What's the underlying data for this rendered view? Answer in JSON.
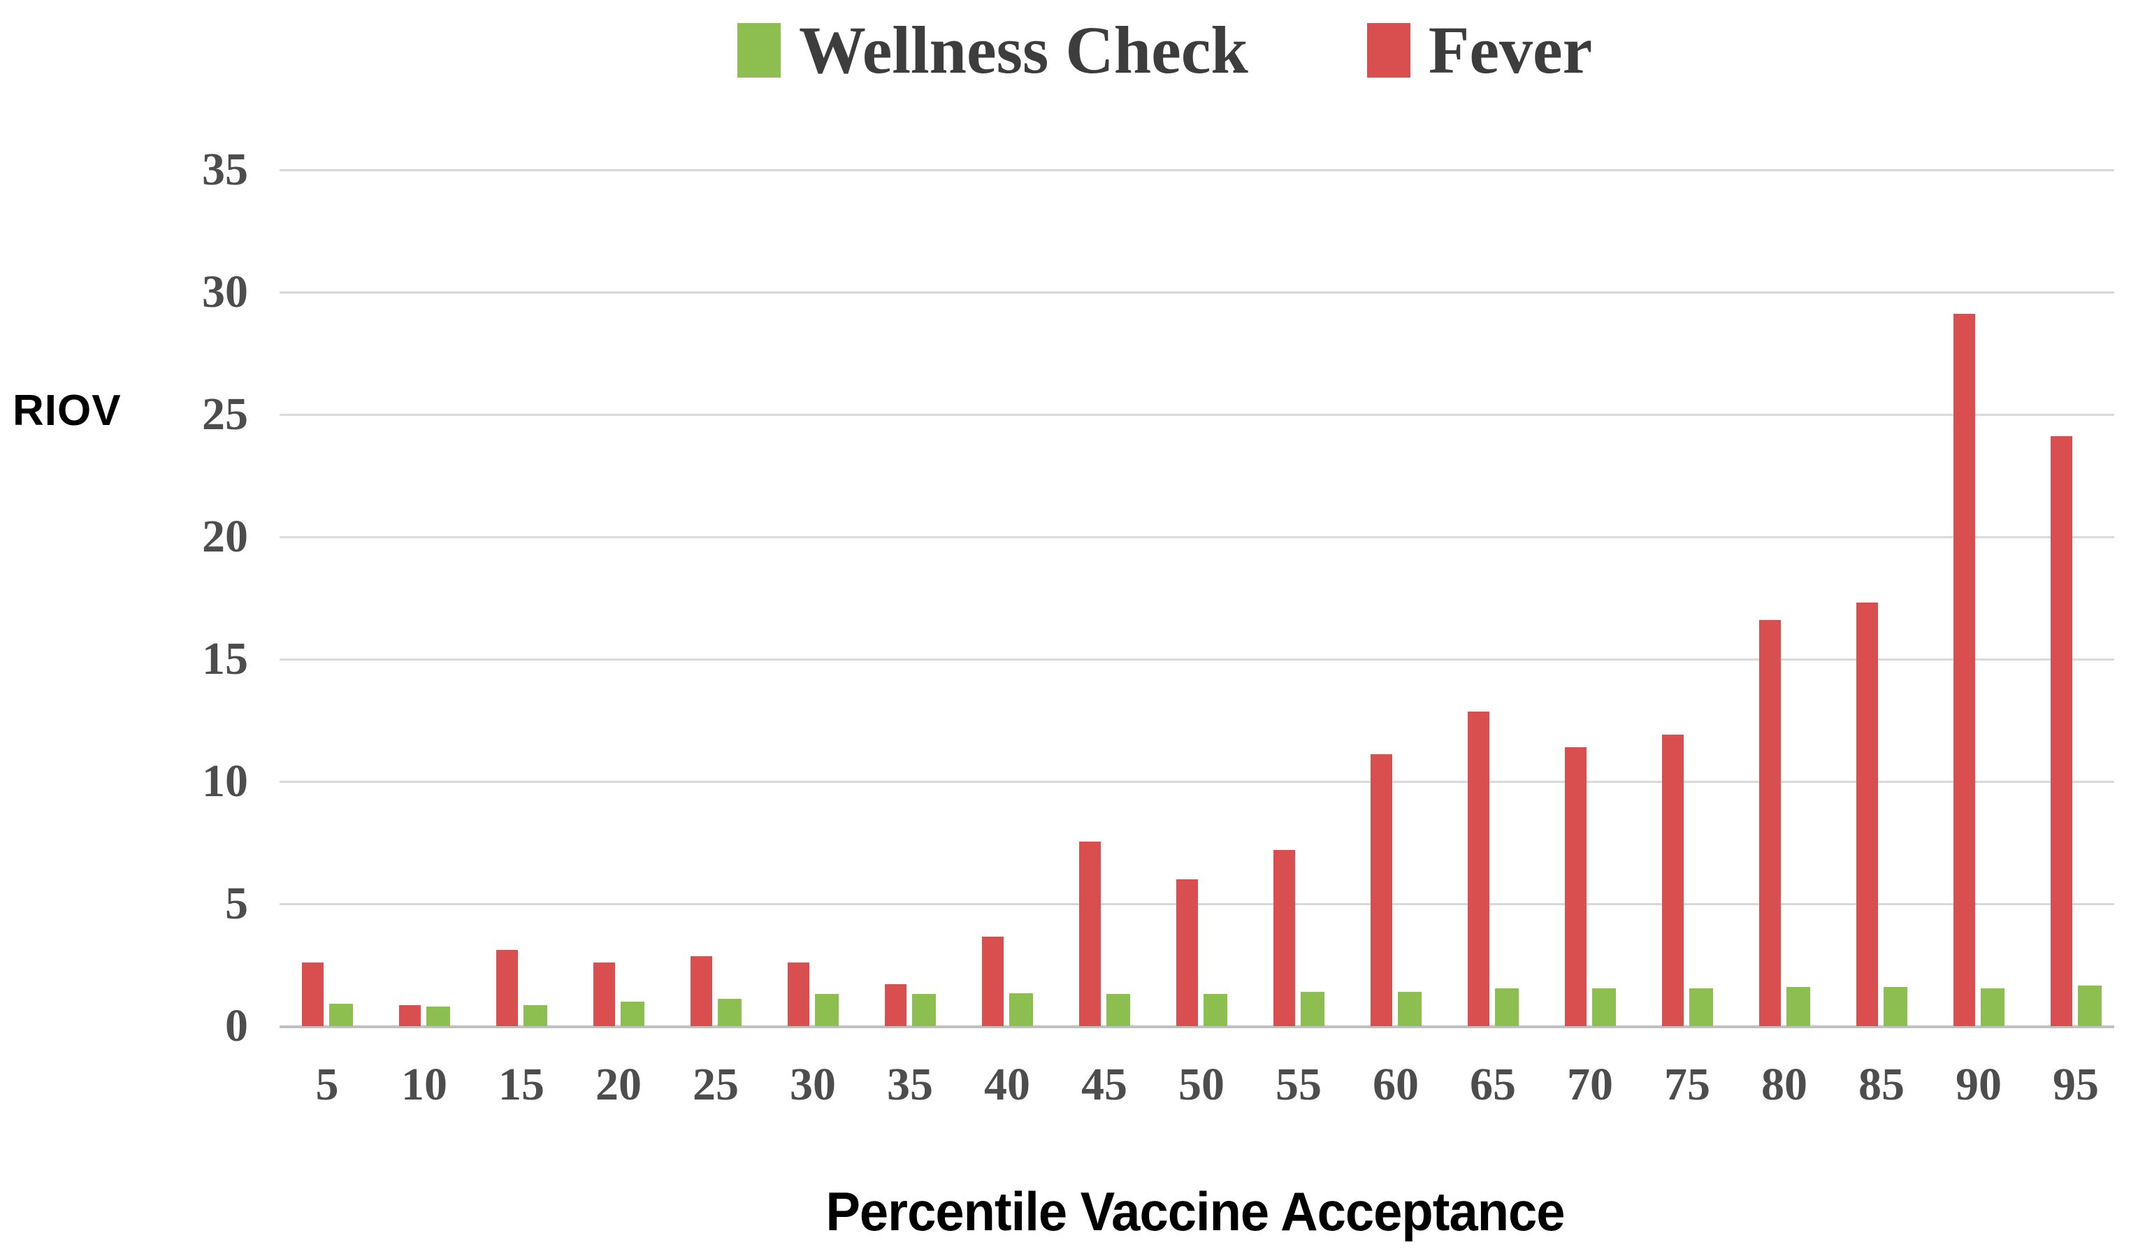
{
  "figure": {
    "ylabel": "RIOV",
    "xlabel": "Percentile Vaccine Acceptance"
  },
  "chart_data": {
    "type": "bar",
    "title": "",
    "xlabel": "Percentile Vaccine Acceptance",
    "ylabel": "RIOV",
    "categories": [
      5,
      10,
      15,
      20,
      25,
      30,
      35,
      40,
      45,
      50,
      55,
      60,
      65,
      70,
      75,
      80,
      85,
      90,
      95
    ],
    "series": [
      {
        "name": "Wellness Check",
        "color": "#8dbe50",
        "values": [
          0.9,
          0.8,
          0.85,
          1.0,
          1.1,
          1.3,
          1.3,
          1.35,
          1.3,
          1.3,
          1.4,
          1.4,
          1.55,
          1.55,
          1.55,
          1.6,
          1.6,
          1.55,
          1.65
        ]
      },
      {
        "name": "Fever",
        "color": "#d94f4f",
        "values": [
          2.6,
          0.85,
          3.1,
          2.6,
          2.85,
          2.6,
          1.7,
          3.65,
          7.55,
          6.0,
          7.2,
          11.1,
          12.85,
          11.4,
          11.9,
          16.6,
          17.3,
          29.1,
          24.1
        ]
      }
    ],
    "ylim": [
      0,
      35
    ],
    "y_ticks": [
      0,
      5,
      10,
      15,
      20,
      25,
      30,
      35
    ],
    "grid": "horizontal",
    "legend_position": "top",
    "bar_draw_order": [
      "Fever",
      "Wellness Check"
    ],
    "gridline_color": "#d9d9d9",
    "axis_line_color": "#c0c0c0",
    "tick_label_color": "#4d4d4d",
    "legend_text_color": "#3d3d3d"
  }
}
